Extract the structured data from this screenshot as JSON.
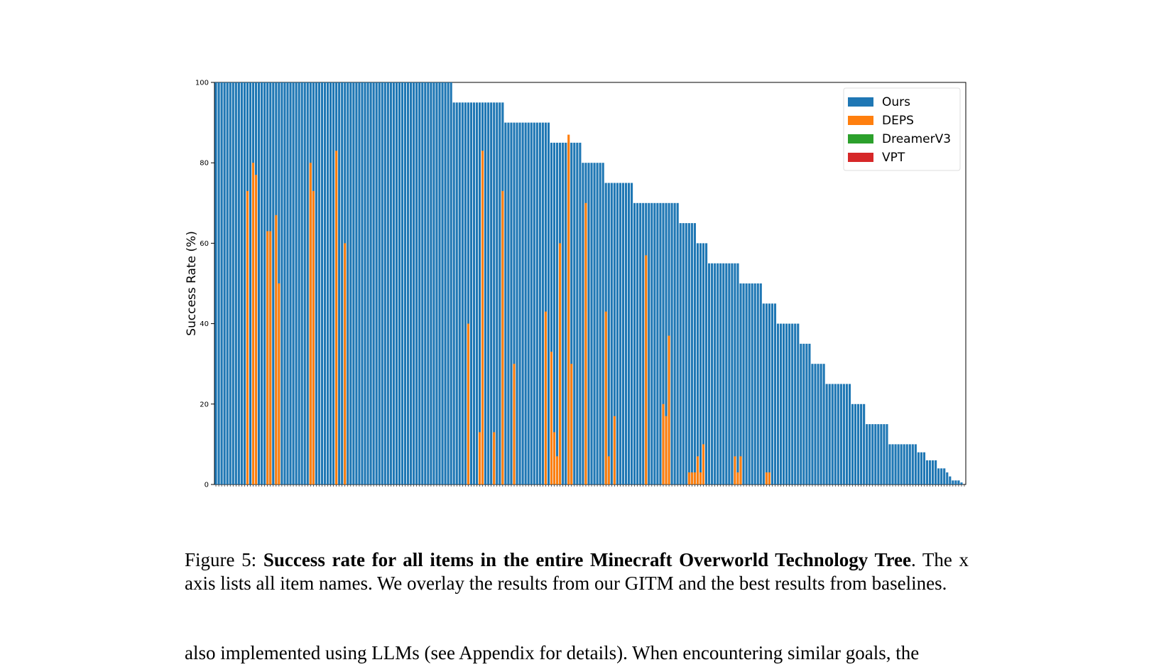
{
  "chart_data": {
    "type": "bar",
    "title": "",
    "xlabel": "",
    "ylabel": "Success Rate (%)",
    "ylim": [
      0,
      100
    ],
    "yticks": [
      0,
      20,
      40,
      60,
      80,
      100
    ],
    "grid": false,
    "legend_position": "top-right",
    "num_items": 262,
    "series": [
      {
        "name": "Ours",
        "color": "#1f77b4",
        "values": [
          100,
          100,
          100,
          100,
          100,
          100,
          100,
          100,
          100,
          100,
          100,
          100,
          100,
          100,
          100,
          100,
          100,
          100,
          100,
          100,
          100,
          100,
          100,
          100,
          100,
          100,
          100,
          100,
          100,
          100,
          100,
          100,
          100,
          100,
          100,
          100,
          100,
          100,
          100,
          100,
          100,
          100,
          100,
          100,
          100,
          100,
          100,
          100,
          100,
          100,
          100,
          100,
          100,
          100,
          100,
          100,
          100,
          100,
          100,
          100,
          100,
          100,
          100,
          100,
          100,
          100,
          100,
          100,
          100,
          100,
          100,
          100,
          100,
          100,
          100,
          100,
          100,
          100,
          100,
          100,
          100,
          100,
          100,
          95,
          95,
          95,
          95,
          95,
          95,
          95,
          95,
          95,
          95,
          95,
          95,
          95,
          95,
          95,
          95,
          95,
          95,
          90,
          90,
          90,
          90,
          90,
          90,
          90,
          90,
          90,
          90,
          90,
          90,
          90,
          90,
          90,
          90,
          85,
          85,
          85,
          85,
          85,
          85,
          85,
          85,
          85,
          85,
          85,
          80,
          80,
          80,
          80,
          80,
          80,
          80,
          80,
          75,
          75,
          75,
          75,
          75,
          75,
          75,
          75,
          75,
          75,
          70,
          70,
          70,
          70,
          70,
          70,
          70,
          70,
          70,
          70,
          70,
          70,
          70,
          70,
          70,
          70,
          65,
          65,
          65,
          65,
          65,
          65,
          60,
          60,
          60,
          60,
          55,
          55,
          55,
          55,
          55,
          55,
          55,
          55,
          55,
          55,
          55,
          50,
          50,
          50,
          50,
          50,
          50,
          50,
          50,
          45,
          45,
          45,
          45,
          45,
          40,
          40,
          40,
          40,
          40,
          40,
          40,
          40,
          35,
          35,
          35,
          35,
          30,
          30,
          30,
          30,
          30,
          25,
          25,
          25,
          25,
          25,
          25,
          25,
          25,
          25,
          20,
          20,
          20,
          20,
          20,
          15,
          15,
          15,
          15,
          15,
          15,
          15,
          15,
          10,
          10,
          10,
          10,
          10,
          10,
          10,
          10,
          10,
          10,
          8,
          8,
          8,
          6,
          6,
          6,
          6,
          4,
          4,
          4,
          3,
          2,
          1,
          1,
          1,
          0.5
        ]
      },
      {
        "name": "DEPS",
        "color": "#ff7f0e",
        "values": [
          0,
          0,
          0,
          0,
          0,
          0,
          0,
          0,
          0,
          0,
          0,
          73,
          0,
          80,
          77,
          0,
          0,
          0,
          63,
          63,
          0,
          67,
          50,
          0,
          0,
          0,
          0,
          0,
          0,
          0,
          0,
          0,
          0,
          80,
          73,
          0,
          0,
          0,
          0,
          0,
          0,
          0,
          83,
          0,
          0,
          60,
          0,
          0,
          0,
          0,
          0,
          0,
          0,
          0,
          0,
          0,
          0,
          0,
          0,
          0,
          0,
          0,
          0,
          0,
          0,
          0,
          0,
          0,
          0,
          0,
          0,
          0,
          0,
          0,
          0,
          0,
          0,
          0,
          0,
          0,
          0,
          0,
          0,
          0,
          0,
          0,
          0,
          0,
          40,
          0,
          0,
          0,
          13,
          83,
          0,
          0,
          0,
          13,
          0,
          0,
          73,
          0,
          0,
          0,
          30,
          0,
          0,
          0,
          0,
          0,
          0,
          0,
          0,
          0,
          0,
          43,
          0,
          33,
          13,
          7,
          60,
          0,
          0,
          87,
          30,
          0,
          0,
          0,
          0,
          70,
          0,
          0,
          0,
          0,
          0,
          0,
          43,
          7,
          0,
          17,
          0,
          0,
          0,
          0,
          0,
          0,
          0,
          0,
          0,
          0,
          57,
          0,
          0,
          0,
          0,
          0,
          20,
          17,
          37,
          0,
          0,
          0,
          0,
          0,
          0,
          3,
          3,
          3,
          7,
          3,
          10,
          0,
          0,
          0,
          0,
          0,
          0,
          0,
          0,
          0,
          0,
          7,
          3,
          7,
          0,
          0,
          0,
          0,
          0,
          0,
          0,
          0,
          3,
          3,
          0,
          0,
          0,
          0,
          0,
          0,
          0,
          0,
          0,
          0,
          0,
          0,
          0,
          0,
          0,
          0,
          0,
          0,
          0,
          0,
          0,
          0,
          0,
          0,
          0,
          0,
          0,
          0,
          0,
          0,
          0,
          0,
          0,
          0,
          0,
          0,
          0,
          0,
          0,
          0,
          0,
          0,
          0,
          0,
          0,
          0,
          0,
          0,
          0,
          0,
          0,
          0,
          0,
          0,
          0,
          0,
          0,
          0,
          0,
          0,
          0,
          0,
          0,
          0,
          0,
          0,
          0,
          0,
          0,
          0,
          0,
          0,
          0,
          0,
          0,
          0,
          0,
          0,
          0,
          0,
          0,
          0,
          0,
          0,
          0,
          0,
          0,
          0,
          0,
          0,
          0,
          0
        ]
      },
      {
        "name": "DreamerV3",
        "color": "#2ca02c",
        "values": []
      },
      {
        "name": "VPT",
        "color": "#d62728",
        "values": []
      }
    ],
    "overlay_notes": "DEPS, DreamerV3 and VPT are drawn on top of Ours for the same item"
  },
  "caption": {
    "prefix": "Figure 5: ",
    "bold": "Success rate for all items in the entire Minecraft Overworld Technology Tree",
    "rest": ". The x axis lists all item names. We overlay the results from our GITM and the best results from baselines."
  },
  "body_text": "also implemented using LLMs (see Appendix for details). When encountering similar goals, the"
}
